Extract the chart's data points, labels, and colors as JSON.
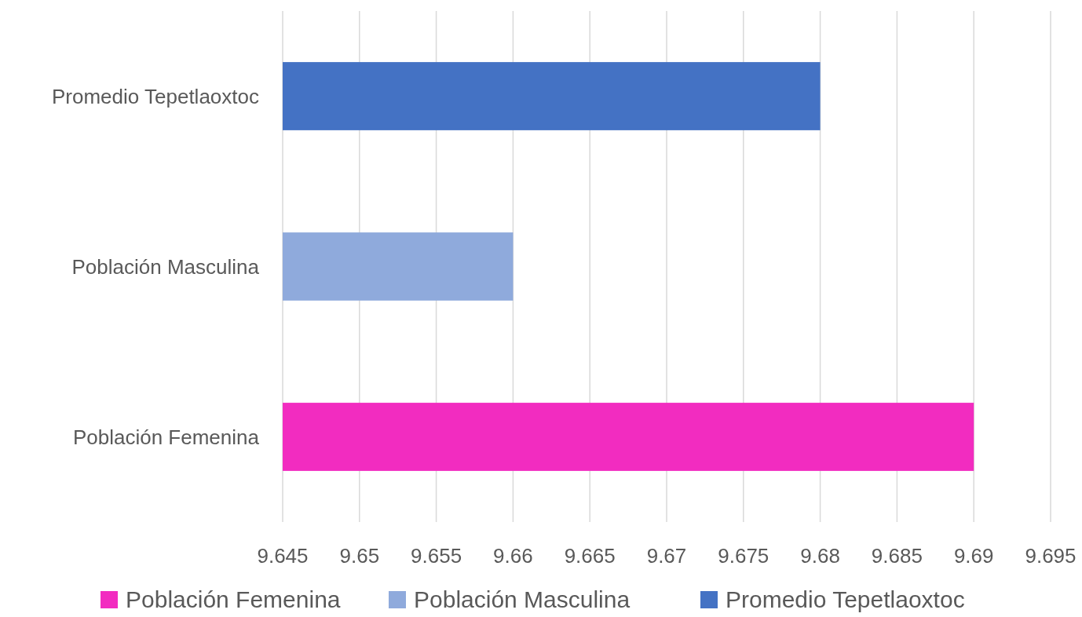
{
  "chart_data": {
    "type": "bar",
    "orientation": "horizontal",
    "categories": [
      "Promedio Tepetlaoxtoc",
      "Población Masculina",
      "Población Femenina"
    ],
    "series": [
      {
        "name": "Población Femenina",
        "color": "#f22cc0",
        "values": [
          null,
          null,
          9.69
        ]
      },
      {
        "name": "Población Masculina",
        "color": "#8faadc",
        "values": [
          null,
          9.66,
          null
        ]
      },
      {
        "name": "Promedio Tepetlaoxtoc",
        "color": "#4472c4",
        "values": [
          9.68,
          null,
          null
        ]
      }
    ],
    "xlim": [
      9.645,
      9.695
    ],
    "xticks": [
      9.645,
      9.65,
      9.655,
      9.66,
      9.665,
      9.67,
      9.675,
      9.68,
      9.685,
      9.69,
      9.695
    ],
    "grid": "x",
    "legend": "bottom"
  }
}
